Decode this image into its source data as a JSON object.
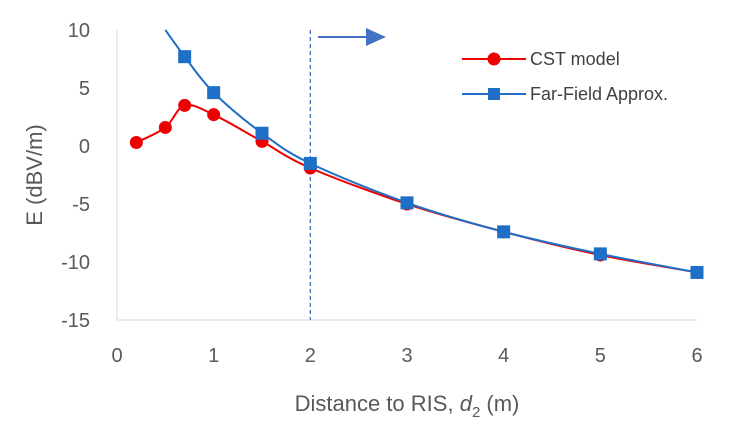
{
  "chart_data": {
    "type": "line",
    "title": "",
    "xlabel": {
      "prefix": "Distance to RIS, ",
      "variable": "d",
      "subscript": "2",
      "suffix": " (m)"
    },
    "ylabel": "E (dBV/m)",
    "xlim": [
      0,
      6
    ],
    "ylim": [
      -15,
      10
    ],
    "xticks": [
      0,
      1,
      2,
      3,
      4,
      5,
      6
    ],
    "yticks": [
      10,
      5,
      0,
      -5,
      -10,
      -15
    ],
    "grid": false,
    "legend_position": "top-right",
    "series": [
      {
        "name": "CST model",
        "color": "#ee0000",
        "marker": "circle",
        "x": [
          0.2,
          0.5,
          0.7,
          1.0,
          1.5,
          2.0,
          3.0,
          4.0,
          5.0,
          6.0
        ],
        "values": [
          0.3,
          1.6,
          3.5,
          2.7,
          0.4,
          -1.9,
          -5.0,
          -7.4,
          -9.4,
          -10.9
        ]
      },
      {
        "name": "Far-Field Approx.",
        "color": "#1f6fc6",
        "marker": "square",
        "x": [
          0.7,
          1.0,
          1.5,
          2.0,
          3.0,
          4.0,
          5.0,
          6.0
        ],
        "values": [
          7.7,
          4.6,
          1.1,
          -1.5,
          -4.9,
          -7.4,
          -9.3,
          -10.9
        ],
        "curve_extends_to": [
          0.5,
          10
        ]
      }
    ],
    "annotations": [
      {
        "type": "vertical-dashed-line",
        "x": 2,
        "color": "#4472c4"
      },
      {
        "type": "arrow",
        "direction": "right",
        "color": "#4472c4"
      }
    ]
  }
}
